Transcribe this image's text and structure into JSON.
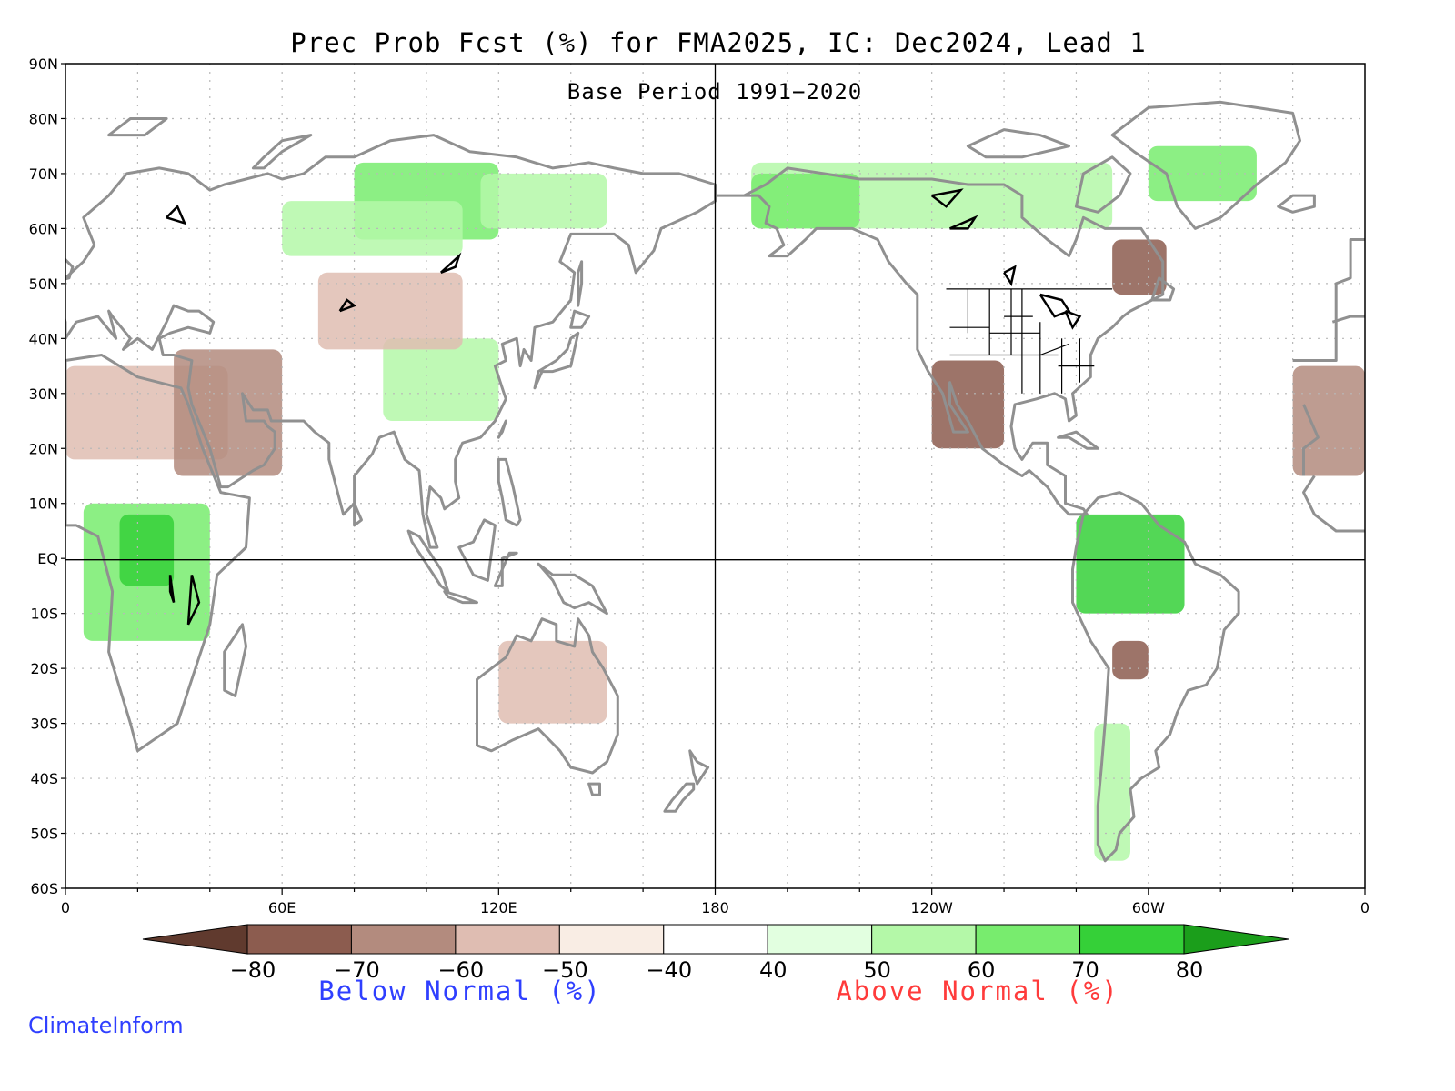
{
  "title": "Prec Prob Fcst (%) for FMA2025, IC: Dec2024, Lead 1",
  "subtitle": "Base Period 1991-2020",
  "credit": "ClimateInform",
  "map": {
    "lat_labels": [
      "90N",
      "80N",
      "70N",
      "60N",
      "50N",
      "40N",
      "30N",
      "20N",
      "10N",
      "EQ",
      "10S",
      "20S",
      "30S",
      "40S",
      "50S",
      "60S"
    ],
    "lon_labels": [
      "0",
      "60E",
      "120E",
      "180",
      "120W",
      "60W",
      "0"
    ],
    "lat_range": [
      -60,
      90
    ],
    "lon_range": [
      0,
      360
    ],
    "grid": "dotted",
    "colors": {
      "land_outline": "#909090",
      "lakes": "#000000",
      "frame": "#000000"
    }
  },
  "colorbar": {
    "labels": [
      "-80",
      "-70",
      "-60",
      "-50",
      "-40",
      "40",
      "50",
      "60",
      "70",
      "80"
    ],
    "colors": [
      "#603a2e",
      "#8c5c4f",
      "#b38b7e",
      "#dfbdb2",
      "#f9ede4",
      "#ffffff",
      "#e2ffe0",
      "#b4f8a8",
      "#78ec6e",
      "#35d038",
      "#1b9e1b"
    ],
    "below_label": "Below Normal (%)",
    "above_label": "Above Normal (%)",
    "below_color": "#2f3fff",
    "above_color": "#ff3b3b"
  },
  "anomaly_regions": [
    {
      "name": "siberia-wet",
      "lon": [
        80,
        120
      ],
      "lat": [
        58,
        72
      ],
      "category": "above-60"
    },
    {
      "name": "central-siberia-wet",
      "lon": [
        60,
        110
      ],
      "lat": [
        55,
        65
      ],
      "category": "above-50"
    },
    {
      "name": "yakutia-wet",
      "lon": [
        115,
        150
      ],
      "lat": [
        60,
        70
      ],
      "category": "above-50"
    },
    {
      "name": "central-africa-wet",
      "lon": [
        5,
        40
      ],
      "lat": [
        -15,
        10
      ],
      "category": "above-60"
    },
    {
      "name": "congo-wet",
      "lon": [
        15,
        30
      ],
      "lat": [
        -5,
        8
      ],
      "category": "above-70"
    },
    {
      "name": "sahara-dry",
      "lon": [
        0,
        45
      ],
      "lat": [
        18,
        35
      ],
      "category": "below-50"
    },
    {
      "name": "middle-east-dry",
      "lon": [
        30,
        60
      ],
      "lat": [
        15,
        38
      ],
      "category": "below-60"
    },
    {
      "name": "china-wet",
      "lon": [
        88,
        120
      ],
      "lat": [
        25,
        40
      ],
      "category": "above-50"
    },
    {
      "name": "mongolia-dry",
      "lon": [
        70,
        110
      ],
      "lat": [
        38,
        52
      ],
      "category": "below-50"
    },
    {
      "name": "australia-dry",
      "lon": [
        120,
        150
      ],
      "lat": [
        -30,
        -15
      ],
      "category": "below-50"
    },
    {
      "name": "canada-wet",
      "lon": [
        190,
        290
      ],
      "lat": [
        60,
        72
      ],
      "category": "above-50"
    },
    {
      "name": "alaska-wet",
      "lon": [
        190,
        220
      ],
      "lat": [
        60,
        70
      ],
      "category": "above-60"
    },
    {
      "name": "greenland-wet",
      "lon": [
        300,
        330
      ],
      "lat": [
        65,
        75
      ],
      "category": "above-60"
    },
    {
      "name": "labrador-dry",
      "lon": [
        290,
        305
      ],
      "lat": [
        48,
        58
      ],
      "category": "below-70"
    },
    {
      "name": "sw-us-dry",
      "lon": [
        240,
        260
      ],
      "lat": [
        20,
        36
      ],
      "category": "below-70"
    },
    {
      "name": "amazon-wet",
      "lon": [
        280,
        310
      ],
      "lat": [
        -10,
        8
      ],
      "category": "above-70"
    },
    {
      "name": "bolivia-dry",
      "lon": [
        290,
        300
      ],
      "lat": [
        -22,
        -15
      ],
      "category": "below-70"
    },
    {
      "name": "patagonia-wet",
      "lon": [
        285,
        295
      ],
      "lat": [
        -55,
        -30
      ],
      "category": "above-50"
    },
    {
      "name": "west-africa-dry",
      "lon": [
        340,
        360
      ],
      "lat": [
        15,
        35
      ],
      "category": "below-60"
    }
  ]
}
